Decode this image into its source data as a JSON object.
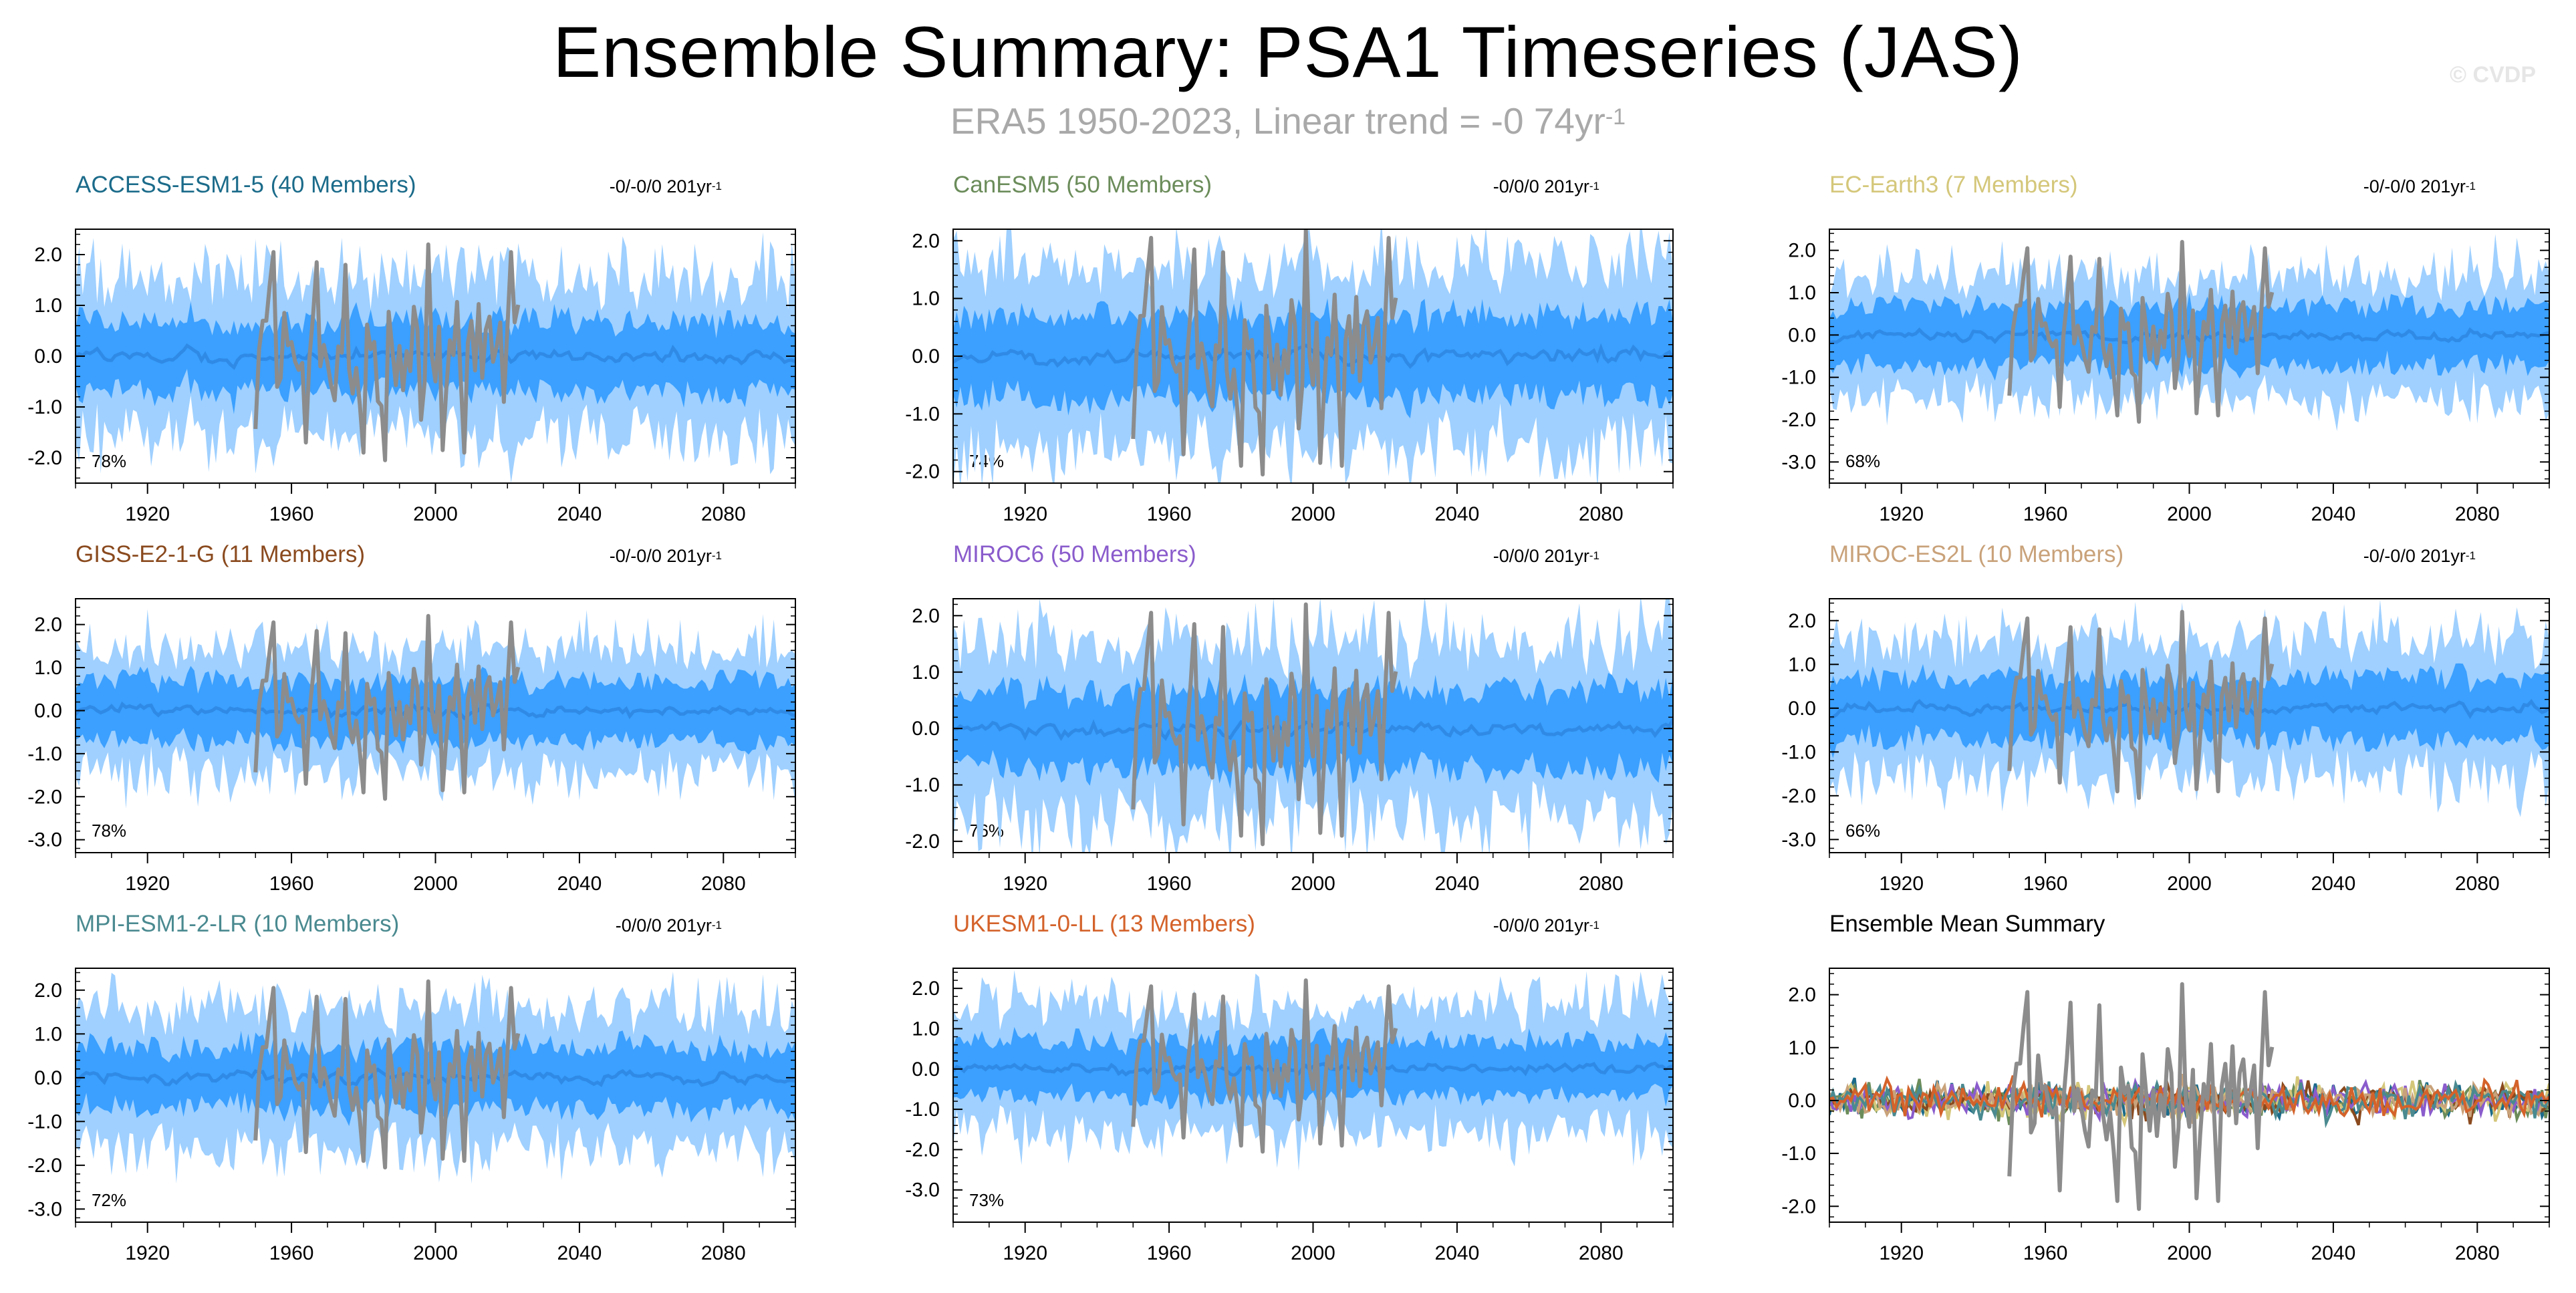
{
  "header": {
    "title": "Ensemble Summary: PSA1 Timeseries (JAS)",
    "subtitle_main": "ERA5 1950-2023, Linear trend = -0 74yr",
    "subtitle_sup": "-1",
    "copyright": "© CVDP"
  },
  "colors": {
    "outer_band": "#9fd0ff",
    "inner_band": "#3ba0ff",
    "ensemble_mean": "#2f8ae6",
    "observations": "#8c8c8c"
  },
  "chart_data": [
    {
      "type": "area",
      "id": "access",
      "title": "ACCESS-ESM1-5 (40 Members)",
      "title_color": "#1b6b8a",
      "trend_main": "-0/-0/0 201yr",
      "trend_sup": "-1",
      "percent": "78%",
      "x_range": [
        1900,
        2100
      ],
      "xticks": [
        1920,
        1960,
        2000,
        2040,
        2080
      ],
      "ylim": [
        -2.5,
        2.5
      ],
      "yticks": [
        -2.0,
        -1.0,
        0.0,
        1.0,
        2.0
      ],
      "ytick_labels": [
        "-2.0",
        "-1.0",
        "0.0",
        "1.0",
        "2.0"
      ],
      "band_outer_halfwidth": 1.5,
      "band_inner_halfwidth": 0.7,
      "obs_years": [
        1950,
        2023
      ]
    },
    {
      "type": "area",
      "id": "canesm",
      "title": "CanESM5 (50 Members)",
      "title_color": "#6b8c5a",
      "trend_main": "-0/0/0 201yr",
      "trend_sup": "-1",
      "percent": "74%",
      "x_range": [
        1900,
        2100
      ],
      "xticks": [
        1920,
        1960,
        2000,
        2040,
        2080
      ],
      "ylim": [
        -2.2,
        2.2
      ],
      "yticks": [
        -2.0,
        -1.0,
        0.0,
        1.0,
        2.0
      ],
      "ytick_labels": [
        "-2.0",
        "-1.0",
        "0.0",
        "1.0",
        "2.0"
      ],
      "band_outer_halfwidth": 1.5,
      "band_inner_halfwidth": 0.7,
      "obs_years": [
        1950,
        2023
      ]
    },
    {
      "type": "area",
      "id": "ecearth",
      "title": "EC-Earth3 (7 Members)",
      "title_color": "#d4c77a",
      "trend_main": "-0/-0/0 201yr",
      "trend_sup": "-1",
      "percent": "68%",
      "x_range": [
        1900,
        2100
      ],
      "xticks": [
        1920,
        1960,
        2000,
        2040,
        2080
      ],
      "ylim": [
        -3.5,
        2.5
      ],
      "yticks": [
        -3.0,
        -2.0,
        -1.0,
        0.0,
        1.0,
        2.0
      ],
      "ytick_labels": [
        "-3.0",
        "-2.0",
        "-1.0",
        "0.0",
        "1.0",
        "2.0"
      ],
      "band_outer_halfwidth": 1.4,
      "band_inner_halfwidth": 0.7,
      "obs_years": [
        1950,
        2023
      ]
    },
    {
      "type": "area",
      "id": "giss",
      "title": "GISS-E2-1-G (11 Members)",
      "title_color": "#8a4a1e",
      "trend_main": "-0/-0/0 201yr",
      "trend_sup": "-1",
      "percent": "78%",
      "x_range": [
        1900,
        2100
      ],
      "xticks": [
        1920,
        1960,
        2000,
        2040,
        2080
      ],
      "ylim": [
        -3.3,
        2.6
      ],
      "yticks": [
        -3.0,
        -2.0,
        -1.0,
        0.0,
        1.0,
        2.0
      ],
      "ytick_labels": [
        "-3.0",
        "-2.0",
        "-1.0",
        "0.0",
        "1.0",
        "2.0"
      ],
      "band_outer_halfwidth": 1.4,
      "band_inner_halfwidth": 0.7,
      "obs_years": [
        1950,
        2023
      ]
    },
    {
      "type": "area",
      "id": "miroc6",
      "title": "MIROC6 (50 Members)",
      "title_color": "#8a5ccc",
      "trend_main": "-0/0/0 201yr",
      "trend_sup": "-1",
      "percent": "76%",
      "x_range": [
        1900,
        2100
      ],
      "xticks": [
        1920,
        1960,
        2000,
        2040,
        2080
      ],
      "ylim": [
        -2.2,
        2.3
      ],
      "yticks": [
        -2.0,
        -1.0,
        0.0,
        1.0,
        2.0
      ],
      "ytick_labels": [
        "-2.0",
        "-1.0",
        "0.0",
        "1.0",
        "2.0"
      ],
      "band_outer_halfwidth": 1.5,
      "band_inner_halfwidth": 0.7,
      "obs_years": [
        1950,
        2023
      ]
    },
    {
      "type": "area",
      "id": "mirocesl",
      "title": "MIROC-ES2L (10 Members)",
      "title_color": "#c9a27a",
      "trend_main": "-0/-0/0 201yr",
      "trend_sup": "-1",
      "percent": "66%",
      "x_range": [
        1900,
        2100
      ],
      "xticks": [
        1920,
        1960,
        2000,
        2040,
        2080
      ],
      "ylim": [
        -3.3,
        2.5
      ],
      "yticks": [
        -3.0,
        -2.0,
        -1.0,
        0.0,
        1.0,
        2.0
      ],
      "ytick_labels": [
        "-3.0",
        "-2.0",
        "-1.0",
        "0.0",
        "1.0",
        "2.0"
      ],
      "band_outer_halfwidth": 1.5,
      "band_inner_halfwidth": 0.7,
      "obs_years": [
        1950,
        2023
      ]
    },
    {
      "type": "area",
      "id": "mpi",
      "title": "MPI-ESM1-2-LR (10 Members)",
      "title_color": "#4a8a90",
      "trend_main": "-0/0/0 201yr",
      "trend_sup": "-1",
      "percent": "72%",
      "x_range": [
        1900,
        2100
      ],
      "xticks": [
        1920,
        1960,
        2000,
        2040,
        2080
      ],
      "ylim": [
        -3.3,
        2.5
      ],
      "yticks": [
        -3.0,
        -2.0,
        -1.0,
        0.0,
        1.0,
        2.0
      ],
      "ytick_labels": [
        "-3.0",
        "-2.0",
        "-1.0",
        "0.0",
        "1.0",
        "2.0"
      ],
      "band_outer_halfwidth": 1.5,
      "band_inner_halfwidth": 0.7,
      "obs_years": [
        1950,
        2023
      ]
    },
    {
      "type": "area",
      "id": "ukesm",
      "title": "UKESM1-0-LL (13 Members)",
      "title_color": "#d4622a",
      "trend_main": "-0/0/0 201yr",
      "trend_sup": "-1",
      "percent": "73%",
      "x_range": [
        1900,
        2100
      ],
      "xticks": [
        1920,
        1960,
        2000,
        2040,
        2080
      ],
      "ylim": [
        -3.8,
        2.5
      ],
      "yticks": [
        -3.0,
        -2.0,
        -1.0,
        0.0,
        1.0,
        2.0
      ],
      "ytick_labels": [
        "-3.0",
        "-2.0",
        "-1.0",
        "0.0",
        "1.0",
        "2.0"
      ],
      "band_outer_halfwidth": 1.5,
      "band_inner_halfwidth": 0.7,
      "obs_years": [
        1950,
        2023
      ]
    },
    {
      "type": "line",
      "id": "summary",
      "title": "Ensemble Mean Summary",
      "title_color": "#000000",
      "trend_main": "",
      "trend_sup": "",
      "percent": "",
      "x_range": [
        1900,
        2100
      ],
      "xticks": [
        1920,
        1960,
        2000,
        2040,
        2080
      ],
      "ylim": [
        -2.3,
        2.5
      ],
      "yticks": [
        -2.0,
        -1.0,
        0.0,
        1.0,
        2.0
      ],
      "ytick_labels": [
        "-2.0",
        "-1.0",
        "0.0",
        "1.0",
        "2.0"
      ],
      "obs_years": [
        1950,
        2023
      ],
      "series": [
        {
          "name": "ACCESS-ESM1-5",
          "color": "#1b6b8a"
        },
        {
          "name": "CanESM5",
          "color": "#6b8c5a"
        },
        {
          "name": "EC-Earth3",
          "color": "#d4c77a"
        },
        {
          "name": "GISS-E2-1-G",
          "color": "#8a4a1e"
        },
        {
          "name": "MIROC6",
          "color": "#8a5ccc"
        },
        {
          "name": "MIROC-ES2L",
          "color": "#c9a27a"
        },
        {
          "name": "MPI-ESM1-2-LR",
          "color": "#4a8a90"
        },
        {
          "name": "UKESM1-0-LL",
          "color": "#d4622a"
        }
      ]
    }
  ]
}
